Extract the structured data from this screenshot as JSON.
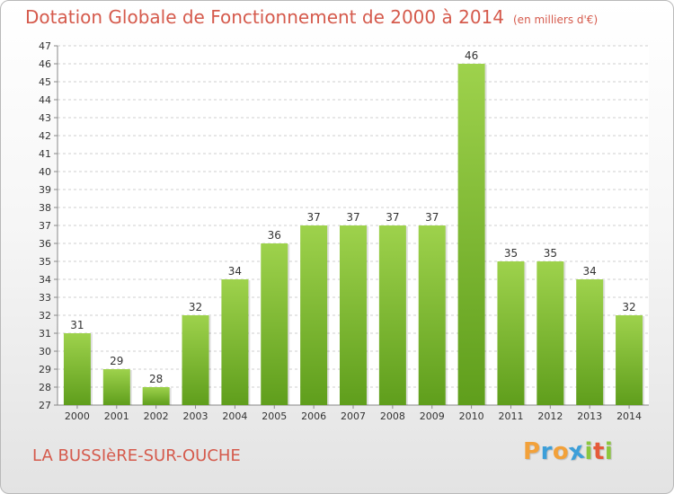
{
  "header": {
    "title": "Dotation Globale de Fonctionnement de 2000 à 2014",
    "unit": "(en milliers d'€)"
  },
  "footer": {
    "commune": "LA BUSSIèRE-SUR-OUCHE",
    "brand_letters": [
      "P",
      "r",
      "o",
      "x",
      "i",
      "t",
      "i"
    ],
    "brand_colors": [
      "#f2a13a",
      "#3d9fd9",
      "#f2a13a",
      "#3d9fd9",
      "#8cc63f",
      "#e55a3a",
      "#8cc63f"
    ]
  },
  "colors": {
    "bar_top": "#9ed24c",
    "bar_bottom": "#5f9e1c",
    "grid": "#cfcfcf",
    "axis_text": "#333333"
  },
  "chart_data": {
    "type": "bar",
    "categories": [
      "2000",
      "2001",
      "2002",
      "2003",
      "2004",
      "2005",
      "2006",
      "2007",
      "2008",
      "2009",
      "2010",
      "2011",
      "2012",
      "2013",
      "2014"
    ],
    "values": [
      31,
      29,
      28,
      32,
      34,
      36,
      37,
      37,
      37,
      37,
      46,
      35,
      35,
      34,
      32
    ],
    "ylim": [
      27,
      47
    ],
    "yticks": [
      27,
      28,
      29,
      30,
      31,
      32,
      33,
      34,
      35,
      36,
      37,
      38,
      39,
      40,
      41,
      42,
      43,
      44,
      45,
      46,
      47
    ],
    "grid": true,
    "legend": "none"
  }
}
